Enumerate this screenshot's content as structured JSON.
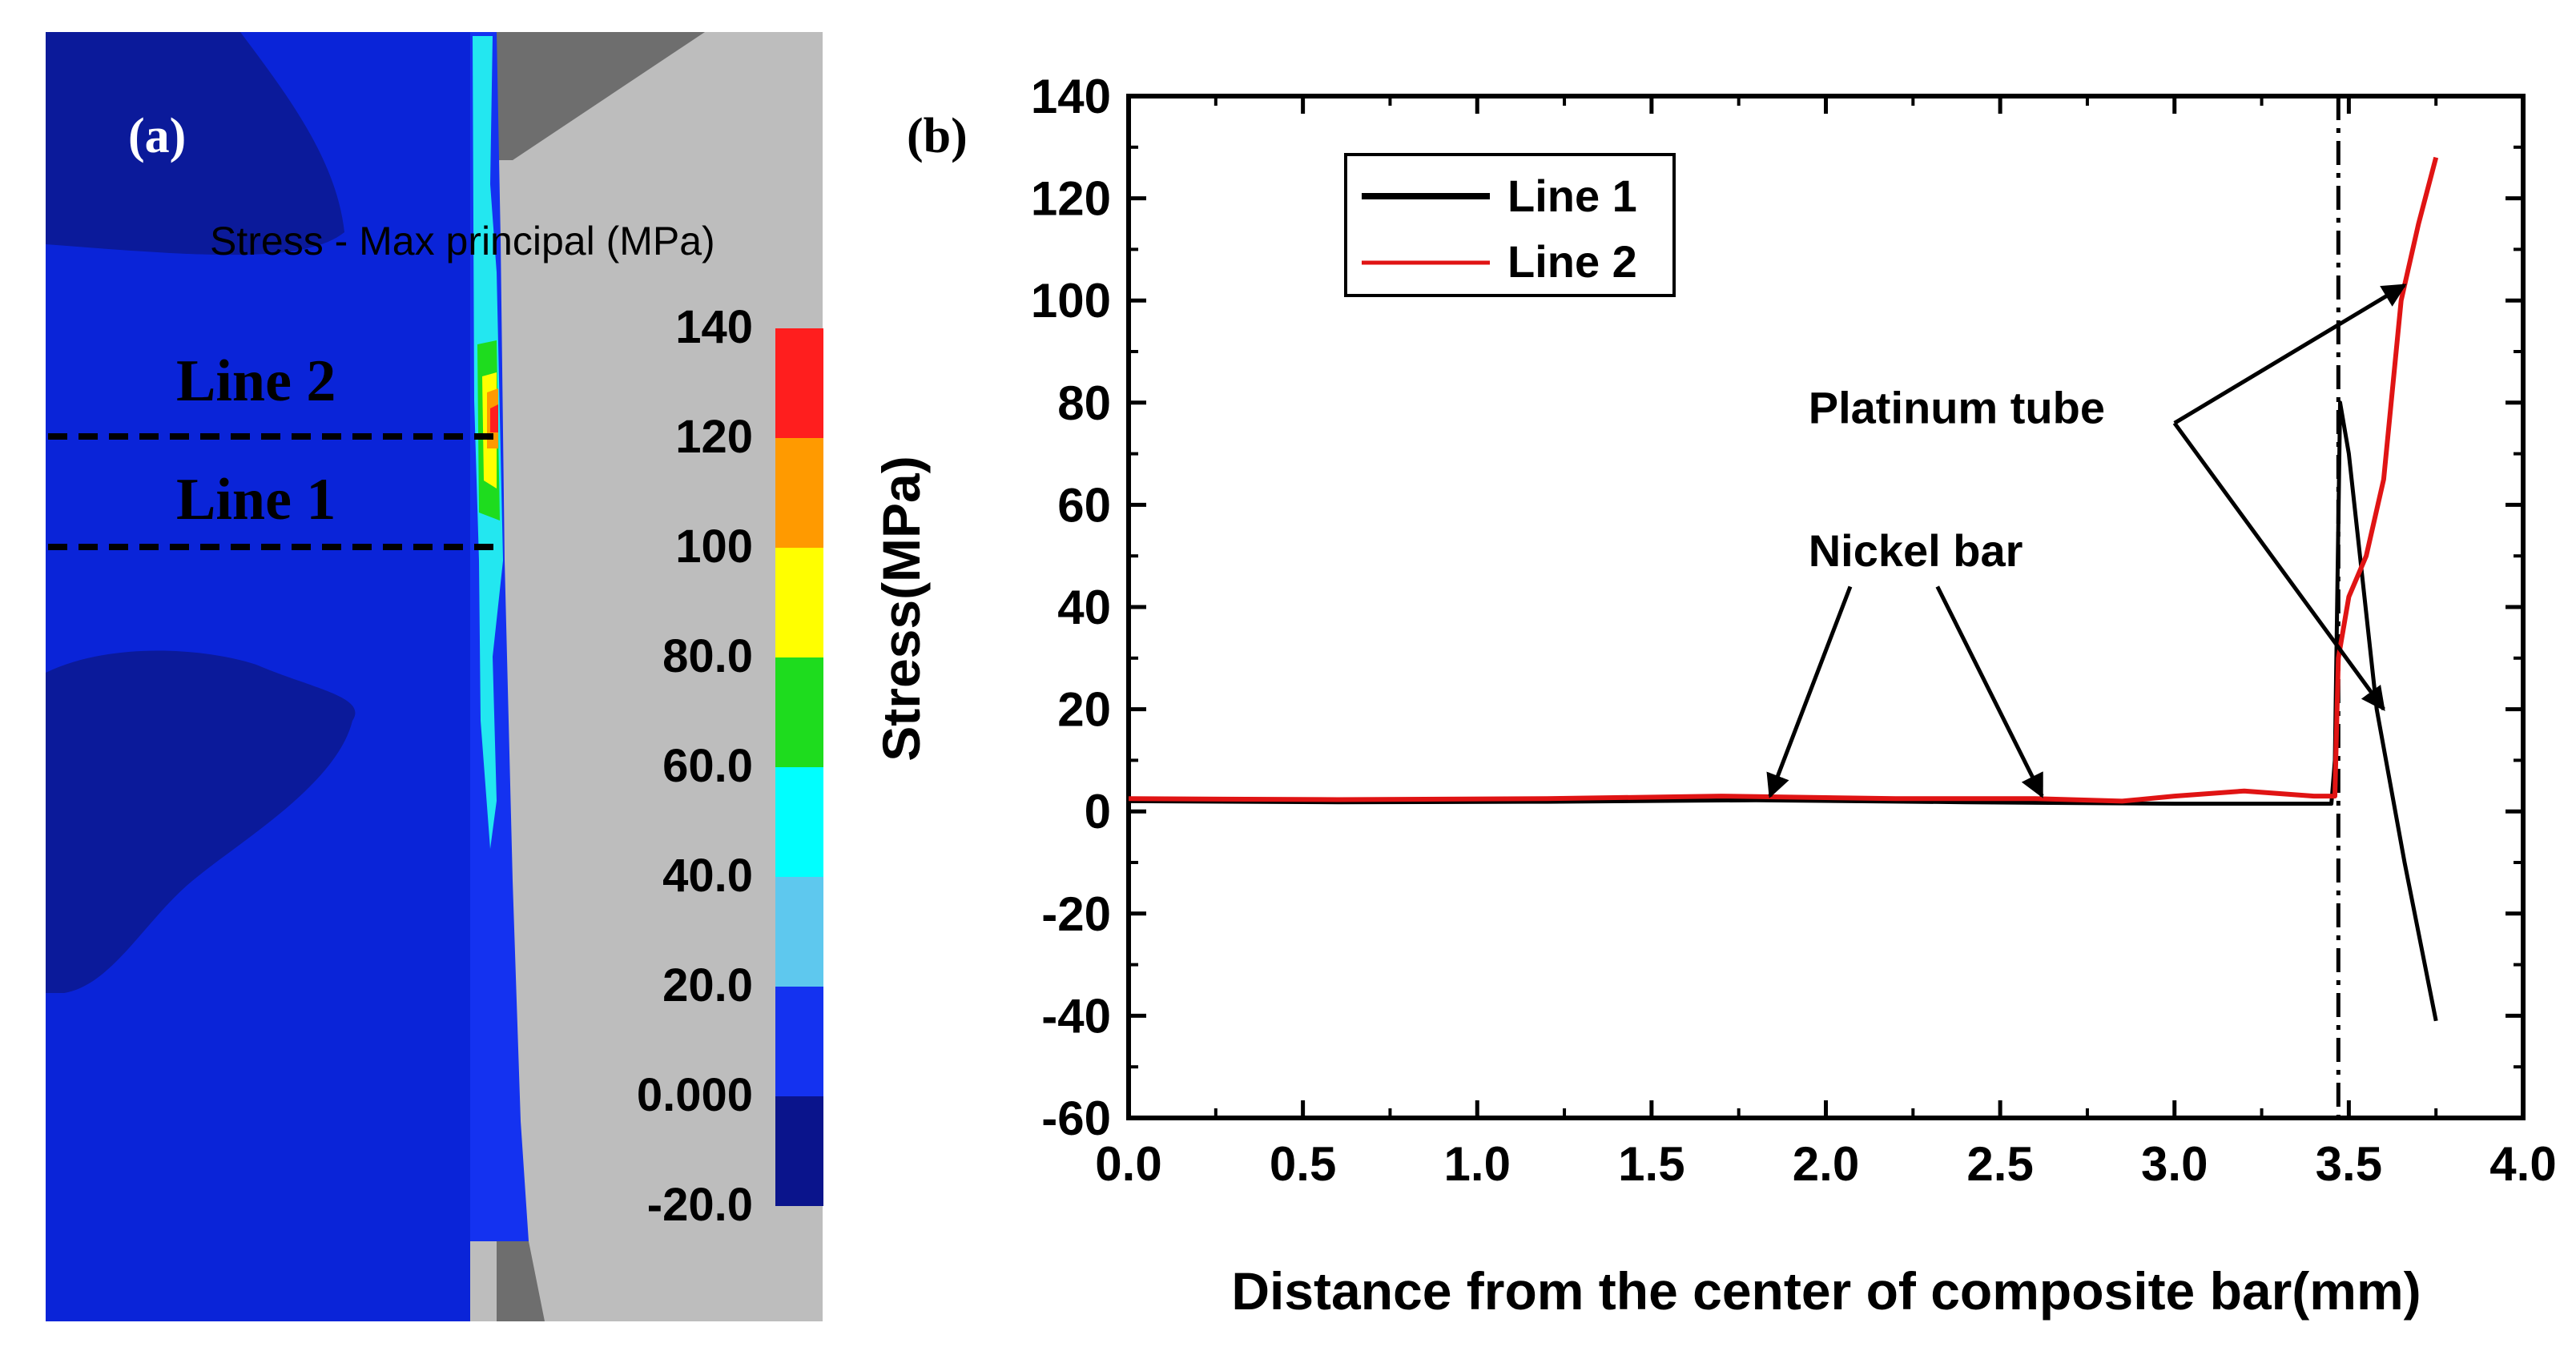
{
  "colors": {
    "nickel_light": "#0a24d8",
    "nickel_dark": "#0b1a9a",
    "tube_gray": "#bdbdbd",
    "tube_dark": "#6e6e6e",
    "cyan": "#23e7f0",
    "line1": "#000000",
    "line2": "#e01414"
  },
  "panel_a": {
    "label": "(a)",
    "contour_title": "Stress - Max principal (MPa)",
    "line2_label": "Line 2",
    "line1_label": "Line 1",
    "legend": {
      "ticks": [
        "140",
        "120",
        "100",
        "80.0",
        "60.0",
        "40.0",
        "20.0",
        "0.000",
        "-20.0"
      ],
      "colors": [
        "#ff1e1e",
        "#ff9a00",
        "#ffff00",
        "#1edc1e",
        "#00ffff",
        "#5ec8ee",
        "#1432f0",
        "#0a148c"
      ]
    }
  },
  "panel_b": {
    "label": "(b)",
    "chart_data": {
      "type": "line",
      "title": "",
      "xlabel": "Distance from the center of composite bar(mm)",
      "ylabel": "Stress(MPa)",
      "xlim": [
        0.0,
        4.0
      ],
      "ylim": [
        -60,
        140
      ],
      "xticks": [
        "0.0",
        "0.5",
        "1.0",
        "1.5",
        "2.0",
        "2.5",
        "3.0",
        "3.5",
        "4.0"
      ],
      "yticks": [
        "-60",
        "-40",
        "-20",
        "0",
        "20",
        "40",
        "60",
        "80",
        "100",
        "120",
        "140"
      ],
      "legend_position": "top-left",
      "series": [
        {
          "name": "Line 1",
          "x": [
            0.0,
            0.6,
            1.2,
            1.8,
            2.4,
            3.0,
            3.45,
            3.46,
            3.475,
            3.5,
            3.58,
            3.66,
            3.75
          ],
          "y": [
            2,
            1.8,
            1.9,
            2.2,
            1.8,
            1.5,
            1.5,
            10,
            80,
            70,
            20,
            -10,
            -41
          ]
        },
        {
          "name": "Line 2",
          "x": [
            0.0,
            0.6,
            1.2,
            1.7,
            2.2,
            2.6,
            2.85,
            3.0,
            3.2,
            3.4,
            3.46,
            3.47,
            3.5,
            3.55,
            3.6,
            3.65,
            3.7,
            3.75
          ],
          "y": [
            2.5,
            2.3,
            2.5,
            3,
            2.5,
            2.5,
            2,
            3,
            4,
            3,
            3,
            30,
            42,
            50,
            65,
            100,
            115,
            128
          ]
        }
      ],
      "annotations": [
        {
          "text": "Platinum tube",
          "text_x": 1.95,
          "text_y": 76
        },
        {
          "text": "Nickel bar",
          "text_x": 1.95,
          "text_y": 48
        }
      ],
      "vertical_marker_x": 3.47
    }
  }
}
